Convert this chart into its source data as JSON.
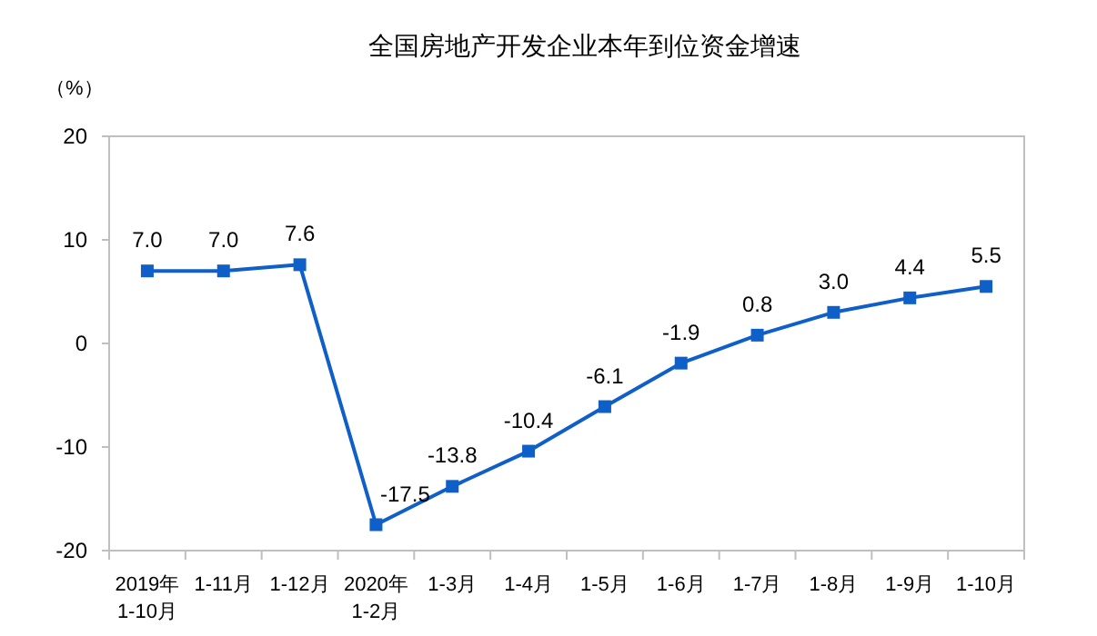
{
  "chart_data": {
    "type": "line",
    "title": "全国房地产开发企业本年到位资金增速",
    "ylabel": "（%）",
    "categories": [
      "2019年\n1-10月",
      "1-11月",
      "1-12月",
      "2020年\n1-2月",
      "1-3月",
      "1-4月",
      "1-5月",
      "1-6月",
      "1-7月",
      "1-8月",
      "1-9月",
      "1-10月"
    ],
    "series": [
      {
        "color": "#0f5fc8",
        "values": [
          7.0,
          7.0,
          7.6,
          -17.5,
          -13.8,
          -10.4,
          -6.1,
          -1.9,
          0.8,
          3.0,
          4.4,
          5.5
        ],
        "value_labels": [
          "7.0",
          "7.0",
          "7.6",
          "-17.5",
          "-13.8",
          "-10.4",
          "-6.1",
          "-1.9",
          "0.8",
          "3.0",
          "4.4",
          "5.5"
        ]
      }
    ],
    "ylim": [
      -20,
      20
    ],
    "yticks": [
      -20,
      -10,
      0,
      10,
      20
    ],
    "grid": false,
    "marker": "square",
    "line_style": "solid"
  }
}
